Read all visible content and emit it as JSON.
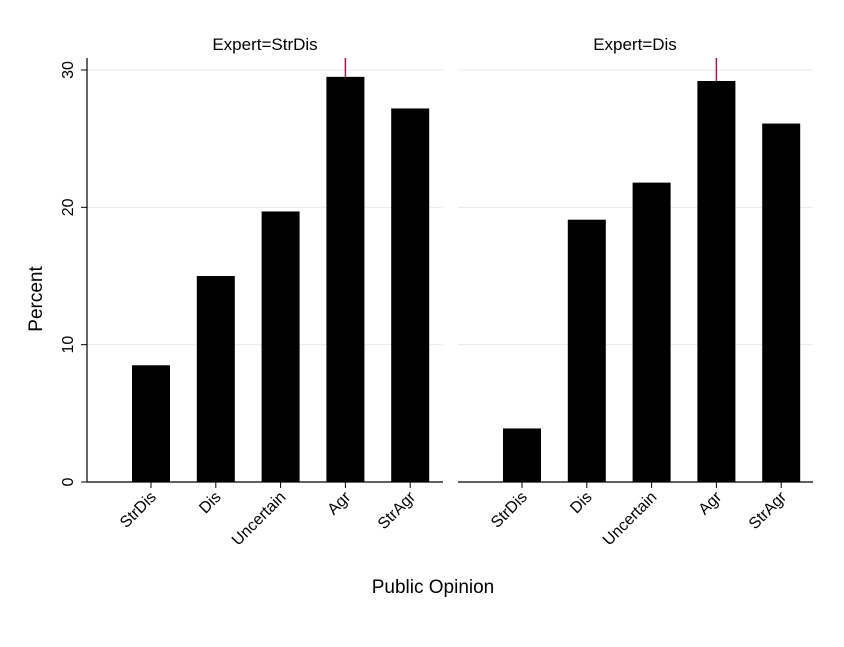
{
  "chart_data": {
    "type": "bar",
    "xlabel": "Public Opinion",
    "ylabel": "Percent",
    "ylim": [
      0,
      30
    ],
    "yticks": [
      0,
      10,
      20,
      30
    ],
    "categories": [
      "StrDis",
      "Dis",
      "Uncertain",
      "Agr",
      "StrAgr"
    ],
    "grid": "horizontal",
    "colors": {
      "bar": "#000000",
      "grid": "#e8e8e8",
      "marker": "#a8194a"
    },
    "panels": [
      {
        "title": "Expert=StrDis",
        "values": [
          8.5,
          15.0,
          19.7,
          29.5,
          27.2
        ],
        "marker_category": "Agr"
      },
      {
        "title": "Expert=Dis",
        "values": [
          3.9,
          19.1,
          21.8,
          29.2,
          26.1
        ],
        "marker_category": "Agr"
      }
    ]
  }
}
